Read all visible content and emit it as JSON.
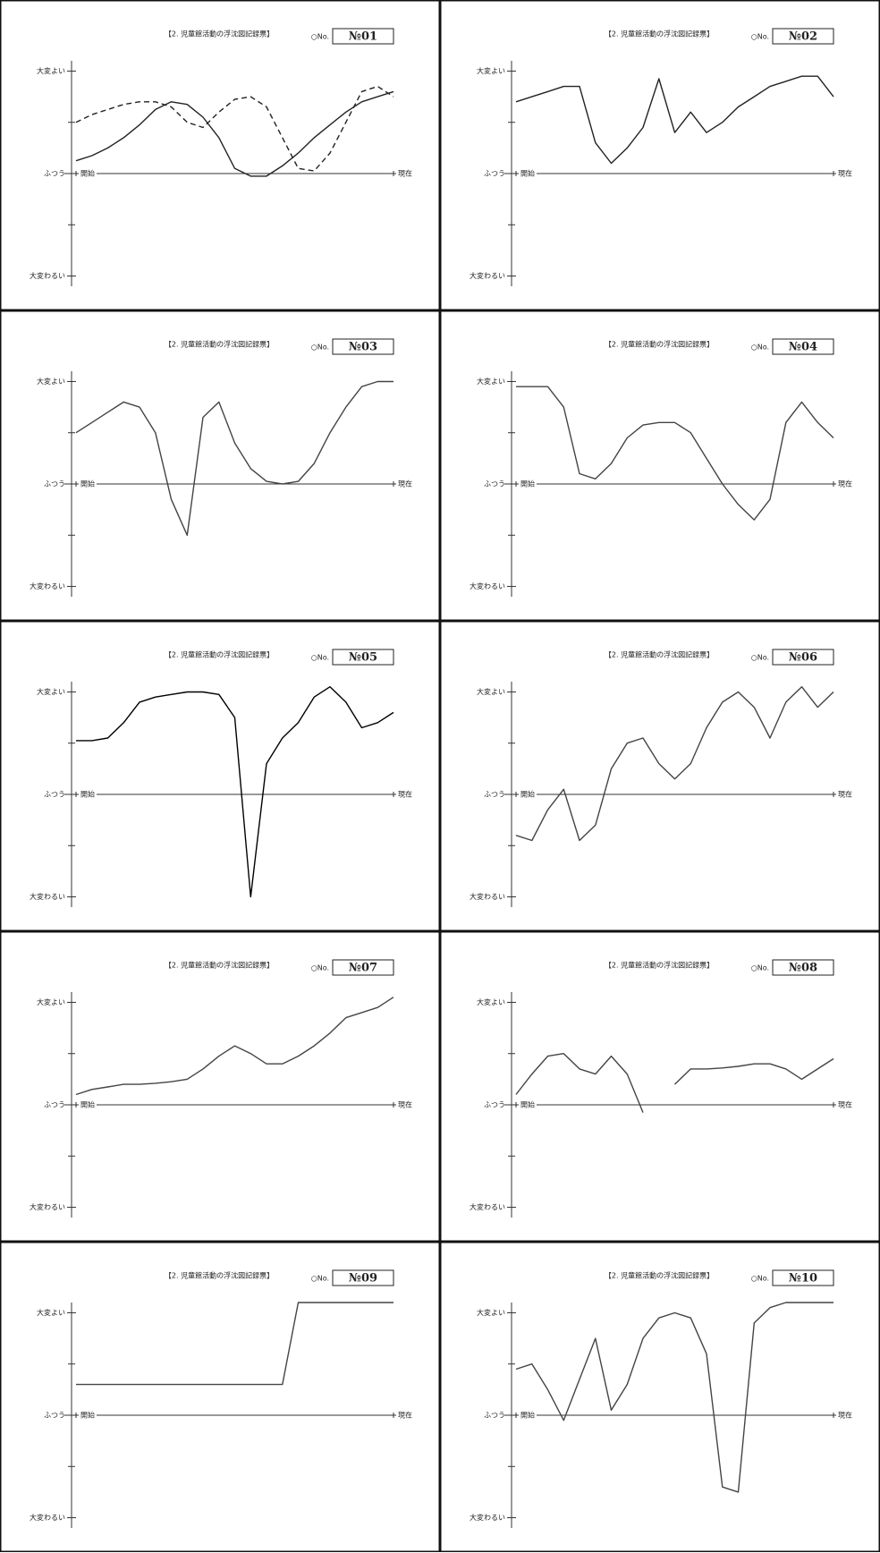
{
  "chart_data": [
    {
      "type": "line",
      "title": "【2. 児童館活動の浮沈図記録票】",
      "no_label": "○No.",
      "id": "№01",
      "xlim": [
        0,
        10
      ],
      "ylim": [
        -2.2,
        2.2
      ],
      "yticks": [
        {
          "value": 2,
          "label": "大変よい"
        },
        {
          "value": 0,
          "label": "ふつう"
        },
        {
          "value": -2,
          "label": "大変わるい"
        }
      ],
      "minor_yticks": [
        -1,
        1
      ],
      "xticks": [
        {
          "value": 0,
          "label": "開始"
        },
        {
          "value": 10,
          "label": "現在"
        }
      ],
      "x": [
        0,
        0.5,
        1,
        1.5,
        2,
        2.5,
        3,
        3.5,
        4,
        4.5,
        5,
        5.5,
        6,
        6.5,
        7,
        7.5,
        8,
        8.5,
        9,
        9.5,
        10
      ],
      "series": [
        {
          "color": "#222222",
          "dash": false,
          "values": [
            0.25,
            0.35,
            0.5,
            0.7,
            0.95,
            1.25,
            1.4,
            1.35,
            1.1,
            0.7,
            0.1,
            -0.05,
            -0.05,
            0.15,
            0.4,
            0.7,
            0.95,
            1.2,
            1.4,
            1.5,
            1.6
          ]
        },
        {
          "color": "#222222",
          "dash": true,
          "values": [
            1.0,
            1.15,
            1.25,
            1.35,
            1.4,
            1.4,
            1.3,
            1.0,
            0.9,
            1.2,
            1.45,
            1.5,
            1.3,
            0.7,
            0.1,
            0.05,
            0.4,
            1.0,
            1.6,
            1.7,
            1.5
          ]
        }
      ]
    },
    {
      "type": "line",
      "title": "【2. 児童館活動の浮沈図記録票】",
      "no_label": "○No.",
      "id": "№02",
      "xlim": [
        0,
        10
      ],
      "ylim": [
        -2.2,
        2.2
      ],
      "yticks": [
        {
          "value": 2,
          "label": "大変よい"
        },
        {
          "value": 0,
          "label": "ふつう"
        },
        {
          "value": -2,
          "label": "大変わるい"
        }
      ],
      "minor_yticks": [
        -1,
        1
      ],
      "xticks": [
        {
          "value": 0,
          "label": "開始"
        },
        {
          "value": 10,
          "label": "現在"
        }
      ],
      "x": [
        0,
        0.5,
        1,
        1.5,
        2,
        2.5,
        3,
        3.5,
        4,
        4.5,
        5,
        5.5,
        6,
        6.5,
        7,
        7.5,
        8,
        8.5,
        9,
        9.5,
        10
      ],
      "series": [
        {
          "color": "#222222",
          "dash": false,
          "values": [
            1.4,
            1.5,
            1.6,
            1.7,
            1.7,
            0.6,
            0.2,
            0.5,
            0.9,
            1.85,
            0.8,
            1.2,
            0.8,
            1.0,
            1.3,
            1.5,
            1.7,
            1.8,
            1.9,
            1.9,
            1.5
          ]
        }
      ]
    },
    {
      "type": "line",
      "title": "【2. 児童館活動の浮沈図記録票】",
      "no_label": "○No.",
      "id": "№03",
      "xlim": [
        0,
        10
      ],
      "ylim": [
        -2.2,
        2.2
      ],
      "yticks": [
        {
          "value": 2,
          "label": "大変よい"
        },
        {
          "value": 0,
          "label": "ふつう"
        },
        {
          "value": -2,
          "label": "大変わるい"
        }
      ],
      "minor_yticks": [
        -1,
        1
      ],
      "xticks": [
        {
          "value": 0,
          "label": "開始"
        },
        {
          "value": 10,
          "label": "現在"
        }
      ],
      "x": [
        0,
        0.5,
        1,
        1.5,
        2,
        2.5,
        3,
        3.5,
        4,
        4.5,
        5,
        5.5,
        6,
        6.5,
        7,
        7.5,
        8,
        8.5,
        9,
        9.5,
        10
      ],
      "series": [
        {
          "color": "#444444",
          "dash": false,
          "values": [
            1.0,
            1.2,
            1.4,
            1.6,
            1.5,
            1.0,
            -0.3,
            -1.0,
            1.3,
            1.6,
            0.8,
            0.3,
            0.05,
            0.0,
            0.05,
            0.4,
            1.0,
            1.5,
            1.9,
            2.0,
            2.0
          ]
        }
      ]
    },
    {
      "type": "line",
      "title": "【2. 児童館活動の浮沈図記録票】",
      "no_label": "○No.",
      "id": "№04",
      "xlim": [
        0,
        10
      ],
      "ylim": [
        -2.2,
        2.2
      ],
      "yticks": [
        {
          "value": 2,
          "label": "大変よい"
        },
        {
          "value": 0,
          "label": "ふつう"
        },
        {
          "value": -2,
          "label": "大変わるい"
        }
      ],
      "minor_yticks": [
        -1,
        1
      ],
      "xticks": [
        {
          "value": 0,
          "label": "開始"
        },
        {
          "value": 10,
          "label": "現在"
        }
      ],
      "x": [
        0,
        0.5,
        1,
        1.5,
        2,
        2.5,
        3,
        3.5,
        4,
        4.5,
        5,
        5.5,
        6,
        6.5,
        7,
        7.5,
        8,
        8.5,
        9,
        9.5,
        10
      ],
      "series": [
        {
          "color": "#444444",
          "dash": false,
          "values": [
            1.9,
            1.9,
            1.9,
            1.5,
            0.2,
            0.1,
            0.4,
            0.9,
            1.15,
            1.2,
            1.2,
            1.0,
            0.5,
            0.0,
            -0.4,
            -0.7,
            -0.3,
            1.2,
            1.6,
            1.2,
            0.9
          ]
        }
      ]
    },
    {
      "type": "line",
      "title": "【2. 児童館活動の浮沈図記録票】",
      "no_label": "○No.",
      "id": "№05",
      "xlim": [
        0,
        10
      ],
      "ylim": [
        -2.2,
        2.2
      ],
      "yticks": [
        {
          "value": 2,
          "label": "大変よい"
        },
        {
          "value": 0,
          "label": "ふつう"
        },
        {
          "value": -2,
          "label": "大変わるい"
        }
      ],
      "minor_yticks": [
        -1,
        1
      ],
      "xticks": [
        {
          "value": 0,
          "label": "開始"
        },
        {
          "value": 10,
          "label": "現在"
        }
      ],
      "x": [
        0,
        0.5,
        1,
        1.5,
        2,
        2.5,
        3,
        3.5,
        4,
        4.5,
        5,
        5.5,
        6,
        6.5,
        7,
        7.5,
        8,
        8.5,
        9,
        9.5,
        10
      ],
      "series": [
        {
          "color": "#000000",
          "dash": false,
          "values": [
            1.05,
            1.05,
            1.1,
            1.4,
            1.8,
            1.9,
            1.95,
            2.0,
            2.0,
            1.95,
            1.5,
            -2.0,
            0.6,
            1.1,
            1.4,
            1.9,
            2.1,
            1.8,
            1.3,
            1.4,
            1.6
          ]
        }
      ]
    },
    {
      "type": "line",
      "title": "【2. 児童館活動の浮沈図記録票】",
      "no_label": "○No.",
      "id": "№06",
      "xlim": [
        0,
        10
      ],
      "ylim": [
        -2.2,
        2.2
      ],
      "yticks": [
        {
          "value": 2,
          "label": "大変よい"
        },
        {
          "value": 0,
          "label": "ふつう"
        },
        {
          "value": -2,
          "label": "大変わるい"
        }
      ],
      "minor_yticks": [
        -1,
        1
      ],
      "xticks": [
        {
          "value": 0,
          "label": "開始"
        },
        {
          "value": 10,
          "label": "現在"
        }
      ],
      "x": [
        0,
        0.5,
        1,
        1.5,
        2,
        2.5,
        3,
        3.5,
        4,
        4.5,
        5,
        5.5,
        6,
        6.5,
        7,
        7.5,
        8,
        8.5,
        9,
        9.5,
        10
      ],
      "series": [
        {
          "color": "#444444",
          "dash": false,
          "values": [
            -0.8,
            -0.9,
            -0.3,
            0.1,
            -0.9,
            -0.6,
            0.5,
            1.0,
            1.1,
            0.6,
            0.3,
            0.6,
            1.3,
            1.8,
            2.0,
            1.7,
            1.1,
            1.8,
            2.1,
            1.7,
            2.0
          ]
        }
      ]
    },
    {
      "type": "line",
      "title": "【2. 児童館活動の浮沈図記録票】",
      "no_label": "○No.",
      "id": "№07",
      "xlim": [
        0,
        10
      ],
      "ylim": [
        -2.2,
        2.2
      ],
      "yticks": [
        {
          "value": 2,
          "label": "大変よい"
        },
        {
          "value": 0,
          "label": "ふつう"
        },
        {
          "value": -2,
          "label": "大変わるい"
        }
      ],
      "minor_yticks": [
        -1,
        1
      ],
      "xticks": [
        {
          "value": 0,
          "label": "開始"
        },
        {
          "value": 10,
          "label": "現在"
        }
      ],
      "x": [
        0,
        0.5,
        1,
        1.5,
        2,
        2.5,
        3,
        3.5,
        4,
        4.5,
        5,
        5.5,
        6,
        6.5,
        7,
        7.5,
        8,
        8.5,
        9,
        9.5,
        10
      ],
      "series": [
        {
          "color": "#444444",
          "dash": false,
          "values": [
            0.2,
            0.3,
            0.35,
            0.4,
            0.4,
            0.42,
            0.45,
            0.5,
            0.7,
            0.95,
            1.15,
            1.0,
            0.8,
            0.8,
            0.95,
            1.15,
            1.4,
            1.7,
            1.8,
            1.9,
            2.1
          ]
        }
      ]
    },
    {
      "type": "line",
      "title": "【2. 児童館活動の浮沈図記録票】",
      "no_label": "○No.",
      "id": "№08",
      "xlim": [
        0,
        10
      ],
      "ylim": [
        -2.2,
        2.2
      ],
      "yticks": [
        {
          "value": 2,
          "label": "大変よい"
        },
        {
          "value": 0,
          "label": "ふつう"
        },
        {
          "value": -2,
          "label": "大変わるい"
        }
      ],
      "minor_yticks": [
        -1,
        1
      ],
      "xticks": [
        {
          "value": 0,
          "label": "開始"
        },
        {
          "value": 10,
          "label": "現在"
        }
      ],
      "x": [
        0,
        0.5,
        1,
        1.5,
        2,
        2.5,
        3,
        3.5,
        4,
        4.5,
        5,
        5.5,
        6,
        6.5,
        7,
        7.5,
        8,
        8.5,
        9,
        9.5,
        10
      ],
      "series": [
        {
          "color": "#444444",
          "dash": false,
          "values": [
            0.2,
            0.6,
            0.95,
            1.0,
            0.7,
            0.6,
            0.95,
            0.6,
            -0.15,
            null,
            0.4,
            0.7,
            0.7,
            0.72,
            0.75,
            0.8,
            0.8,
            0.7,
            0.5,
            0.7,
            0.9
          ]
        }
      ]
    },
    {
      "type": "line",
      "title": "【2. 児童館活動の浮沈図記録票】",
      "no_label": "○No.",
      "id": "№09",
      "xlim": [
        0,
        10
      ],
      "ylim": [
        -2.2,
        2.2
      ],
      "yticks": [
        {
          "value": 2,
          "label": "大変よい"
        },
        {
          "value": 0,
          "label": "ふつう"
        },
        {
          "value": -2,
          "label": "大変わるい"
        }
      ],
      "minor_yticks": [
        -1,
        1
      ],
      "xticks": [
        {
          "value": 0,
          "label": "開始"
        },
        {
          "value": 10,
          "label": "現在"
        }
      ],
      "x": [
        0,
        0.5,
        1,
        1.5,
        2,
        2.5,
        3,
        3.5,
        4,
        4.5,
        5,
        5.5,
        6,
        6.5,
        7,
        7.5,
        8,
        8.5,
        9,
        9.5,
        10
      ],
      "series": [
        {
          "color": "#444444",
          "dash": false,
          "values": [
            0.6,
            0.6,
            0.6,
            0.6,
            0.6,
            0.6,
            0.6,
            0.6,
            0.6,
            0.6,
            0.6,
            0.6,
            0.6,
            0.6,
            2.2,
            2.2,
            2.2,
            2.2,
            2.2,
            2.2,
            2.2
          ]
        }
      ]
    },
    {
      "type": "line",
      "title": "【2. 児童館活動の浮沈図記録票】",
      "no_label": "○No.",
      "id": "№10",
      "xlim": [
        0,
        10
      ],
      "ylim": [
        -2.2,
        2.2
      ],
      "yticks": [
        {
          "value": 2,
          "label": "大変よい"
        },
        {
          "value": 0,
          "label": "ふつう"
        },
        {
          "value": -2,
          "label": "大変わるい"
        }
      ],
      "minor_yticks": [
        -1,
        1
      ],
      "xticks": [
        {
          "value": 0,
          "label": "開始"
        },
        {
          "value": 10,
          "label": "現在"
        }
      ],
      "x": [
        0,
        0.5,
        1,
        1.5,
        2,
        2.5,
        3,
        3.5,
        4,
        4.5,
        5,
        5.5,
        6,
        6.5,
        7,
        7.5,
        8,
        8.5,
        9,
        9.5,
        10
      ],
      "series": [
        {
          "color": "#444444",
          "dash": false,
          "values": [
            0.9,
            1.0,
            0.5,
            -0.1,
            0.7,
            1.5,
            0.1,
            0.6,
            1.5,
            1.9,
            2.0,
            1.9,
            1.2,
            -1.4,
            -1.5,
            1.8,
            2.1,
            2.2,
            2.2,
            2.2,
            2.2
          ]
        }
      ]
    }
  ]
}
